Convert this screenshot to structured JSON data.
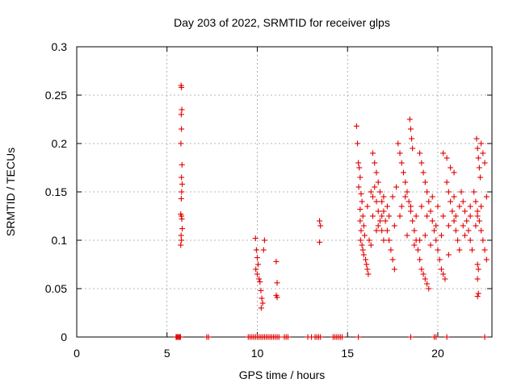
{
  "chart_data": {
    "type": "scatter",
    "title": "Day 203 of 2022, SRMTID for receiver glps",
    "xlabel": "GPS time / hours",
    "ylabel": "SRMTID / TECUs",
    "xlim": [
      0,
      23
    ],
    "ylim": [
      0,
      0.3
    ],
    "xticks": [
      0,
      5,
      10,
      15,
      20
    ],
    "yticks": [
      0,
      0.05,
      0.1,
      0.15,
      0.2,
      0.25,
      0.3
    ],
    "xtick_labels": [
      "0",
      "5",
      "10",
      "15",
      "20"
    ],
    "ytick_labels": [
      "0",
      "0.05",
      "0.1",
      "0.15",
      "0.2",
      "0.25",
      "0.3"
    ],
    "grid": true,
    "legend": "none",
    "marker": "plus",
    "colors": {
      "series": "#e00000",
      "grid": "#a0a0a0",
      "axis": "#000000"
    },
    "series": [
      {
        "points": [
          [
            5.5,
            0
          ],
          [
            5.55,
            0
          ],
          [
            5.6,
            0
          ],
          [
            5.65,
            0
          ],
          [
            5.7,
            0
          ],
          [
            5.75,
            0
          ],
          [
            7.2,
            0
          ],
          [
            7.3,
            0
          ],
          [
            9.5,
            0
          ],
          [
            9.6,
            0
          ],
          [
            9.7,
            0
          ],
          [
            9.8,
            0
          ],
          [
            9.9,
            0
          ],
          [
            10.0,
            0
          ],
          [
            10.1,
            0
          ],
          [
            10.2,
            0
          ],
          [
            10.3,
            0
          ],
          [
            10.4,
            0
          ],
          [
            10.5,
            0
          ],
          [
            10.6,
            0
          ],
          [
            10.7,
            0
          ],
          [
            10.8,
            0
          ],
          [
            10.9,
            0
          ],
          [
            11.0,
            0
          ],
          [
            11.1,
            0
          ],
          [
            11.2,
            0
          ],
          [
            11.5,
            0
          ],
          [
            11.6,
            0
          ],
          [
            11.7,
            0
          ],
          [
            12.8,
            0
          ],
          [
            13.0,
            0
          ],
          [
            13.2,
            0
          ],
          [
            13.3,
            0
          ],
          [
            13.4,
            0
          ],
          [
            13.5,
            0
          ],
          [
            14.2,
            0
          ],
          [
            14.3,
            0
          ],
          [
            14.4,
            0
          ],
          [
            14.5,
            0
          ],
          [
            14.6,
            0
          ],
          [
            14.7,
            0
          ],
          [
            15.6,
            0
          ],
          [
            18.5,
            0
          ],
          [
            19.8,
            0
          ],
          [
            19.9,
            0
          ],
          [
            20.5,
            0
          ],
          [
            22.6,
            0
          ],
          [
            5.78,
            0.26
          ],
          [
            5.8,
            0.258
          ],
          [
            5.82,
            0.235
          ],
          [
            5.79,
            0.23
          ],
          [
            5.8,
            0.215
          ],
          [
            5.77,
            0.2
          ],
          [
            5.83,
            0.178
          ],
          [
            5.8,
            0.165
          ],
          [
            5.84,
            0.158
          ],
          [
            5.81,
            0.15
          ],
          [
            5.79,
            0.143
          ],
          [
            5.76,
            0.127
          ],
          [
            5.8,
            0.125
          ],
          [
            5.82,
            0.122
          ],
          [
            5.84,
            0.112
          ],
          [
            5.78,
            0.105
          ],
          [
            5.8,
            0.1
          ],
          [
            5.76,
            0.095
          ],
          [
            9.9,
            0.102
          ],
          [
            9.95,
            0.09
          ],
          [
            10.0,
            0.082
          ],
          [
            10.05,
            0.075
          ],
          [
            9.92,
            0.07
          ],
          [
            10.0,
            0.065
          ],
          [
            10.1,
            0.06
          ],
          [
            10.15,
            0.057
          ],
          [
            10.2,
            0.048
          ],
          [
            10.25,
            0.04
          ],
          [
            10.3,
            0.035
          ],
          [
            10.22,
            0.03
          ],
          [
            10.4,
            0.1
          ],
          [
            10.35,
            0.09
          ],
          [
            11.05,
            0.078
          ],
          [
            11.1,
            0.056
          ],
          [
            11.05,
            0.043
          ],
          [
            11.1,
            0.041
          ],
          [
            13.45,
            0.12
          ],
          [
            13.5,
            0.115
          ],
          [
            13.45,
            0.098
          ],
          [
            15.5,
            0.218
          ],
          [
            15.55,
            0.2
          ],
          [
            15.6,
            0.18
          ],
          [
            15.65,
            0.175
          ],
          [
            15.7,
            0.165
          ],
          [
            15.62,
            0.155
          ],
          [
            15.75,
            0.148
          ],
          [
            15.8,
            0.14
          ],
          [
            15.7,
            0.132
          ],
          [
            15.85,
            0.125
          ],
          [
            15.7,
            0.12
          ],
          [
            15.9,
            0.115
          ],
          [
            15.75,
            0.11
          ],
          [
            15.95,
            0.105
          ],
          [
            15.72,
            0.1
          ],
          [
            15.8,
            0.095
          ],
          [
            15.85,
            0.09
          ],
          [
            15.9,
            0.085
          ],
          [
            16.0,
            0.08
          ],
          [
            16.05,
            0.075
          ],
          [
            16.1,
            0.07
          ],
          [
            16.15,
            0.065
          ],
          [
            16.3,
            0.15
          ],
          [
            16.4,
            0.145
          ],
          [
            16.5,
            0.155
          ],
          [
            16.6,
            0.14
          ],
          [
            16.7,
            0.13
          ],
          [
            16.8,
            0.12
          ],
          [
            16.9,
            0.11
          ],
          [
            17.0,
            0.1
          ],
          [
            16.4,
            0.19
          ],
          [
            16.5,
            0.18
          ],
          [
            16.6,
            0.17
          ],
          [
            16.7,
            0.16
          ],
          [
            16.8,
            0.15
          ],
          [
            16.9,
            0.14
          ],
          [
            17.0,
            0.13
          ],
          [
            17.1,
            0.12
          ],
          [
            17.2,
            0.11
          ],
          [
            17.3,
            0.1
          ],
          [
            17.4,
            0.09
          ],
          [
            17.5,
            0.08
          ],
          [
            17.6,
            0.07
          ],
          [
            17.8,
            0.2
          ],
          [
            17.9,
            0.19
          ],
          [
            18.0,
            0.18
          ],
          [
            18.1,
            0.17
          ],
          [
            18.2,
            0.16
          ],
          [
            18.3,
            0.15
          ],
          [
            18.4,
            0.14
          ],
          [
            18.5,
            0.13
          ],
          [
            18.6,
            0.12
          ],
          [
            18.7,
            0.11
          ],
          [
            18.8,
            0.1
          ],
          [
            18.45,
            0.225
          ],
          [
            18.5,
            0.215
          ],
          [
            18.55,
            0.205
          ],
          [
            18.6,
            0.195
          ],
          [
            18.9,
            0.09
          ],
          [
            19.0,
            0.08
          ],
          [
            19.1,
            0.07
          ],
          [
            19.2,
            0.065
          ],
          [
            19.3,
            0.06
          ],
          [
            19.4,
            0.055
          ],
          [
            19.5,
            0.05
          ],
          [
            19.0,
            0.19
          ],
          [
            19.1,
            0.18
          ],
          [
            19.2,
            0.17
          ],
          [
            19.3,
            0.16
          ],
          [
            19.4,
            0.15
          ],
          [
            19.5,
            0.14
          ],
          [
            19.6,
            0.13
          ],
          [
            19.7,
            0.12
          ],
          [
            19.8,
            0.11
          ],
          [
            19.9,
            0.1
          ],
          [
            20.0,
            0.09
          ],
          [
            20.1,
            0.08
          ],
          [
            20.2,
            0.07
          ],
          [
            20.3,
            0.065
          ],
          [
            20.4,
            0.06
          ],
          [
            20.5,
            0.16
          ],
          [
            20.6,
            0.15
          ],
          [
            20.7,
            0.14
          ],
          [
            20.8,
            0.13
          ],
          [
            20.9,
            0.12
          ],
          [
            21.0,
            0.11
          ],
          [
            21.1,
            0.1
          ],
          [
            21.2,
            0.09
          ],
          [
            20.3,
            0.19
          ],
          [
            20.5,
            0.185
          ],
          [
            20.7,
            0.175
          ],
          [
            20.9,
            0.17
          ],
          [
            21.3,
            0.15
          ],
          [
            21.4,
            0.14
          ],
          [
            21.5,
            0.13
          ],
          [
            21.6,
            0.12
          ],
          [
            21.7,
            0.11
          ],
          [
            21.8,
            0.1
          ],
          [
            21.9,
            0.09
          ],
          [
            22.0,
            0.15
          ],
          [
            22.1,
            0.14
          ],
          [
            22.2,
            0.13
          ],
          [
            22.3,
            0.12
          ],
          [
            22.4,
            0.11
          ],
          [
            22.5,
            0.1
          ],
          [
            22.6,
            0.09
          ],
          [
            22.7,
            0.08
          ],
          [
            22.15,
            0.205
          ],
          [
            22.2,
            0.195
          ],
          [
            22.25,
            0.185
          ],
          [
            22.3,
            0.175
          ],
          [
            22.35,
            0.165
          ],
          [
            22.4,
            0.2
          ],
          [
            22.5,
            0.19
          ],
          [
            22.6,
            0.18
          ],
          [
            22.2,
            0.075
          ],
          [
            22.25,
            0.07
          ],
          [
            22.2,
            0.06
          ],
          [
            22.25,
            0.045
          ],
          [
            22.2,
            0.042
          ],
          [
            16.2,
            0.1
          ],
          [
            16.3,
            0.095
          ],
          [
            16.6,
            0.11
          ],
          [
            16.9,
            0.125
          ],
          [
            17.2,
            0.135
          ],
          [
            17.5,
            0.145
          ],
          [
            17.7,
            0.155
          ],
          [
            18.0,
            0.135
          ],
          [
            18.3,
            0.105
          ],
          [
            18.7,
            0.095
          ],
          [
            19.0,
            0.1
          ],
          [
            19.3,
            0.105
          ],
          [
            19.6,
            0.095
          ],
          [
            19.9,
            0.115
          ],
          [
            20.2,
            0.105
          ],
          [
            20.6,
            0.085
          ],
          [
            21.0,
            0.125
          ],
          [
            21.4,
            0.115
          ],
          [
            21.8,
            0.135
          ],
          [
            22.2,
            0.125
          ],
          [
            16.1,
            0.135
          ],
          [
            16.4,
            0.125
          ],
          [
            16.7,
            0.115
          ],
          [
            17.0,
            0.145
          ],
          [
            17.3,
            0.125
          ],
          [
            17.6,
            0.115
          ],
          [
            17.9,
            0.125
          ],
          [
            18.2,
            0.145
          ],
          [
            18.5,
            0.135
          ],
          [
            18.8,
            0.125
          ],
          [
            19.1,
            0.135
          ],
          [
            19.4,
            0.125
          ],
          [
            19.7,
            0.145
          ],
          [
            20.0,
            0.135
          ],
          [
            20.3,
            0.125
          ],
          [
            20.6,
            0.115
          ],
          [
            20.9,
            0.145
          ],
          [
            21.2,
            0.135
          ],
          [
            21.5,
            0.105
          ],
          [
            21.8,
            0.125
          ],
          [
            22.1,
            0.115
          ],
          [
            22.4,
            0.135
          ],
          [
            22.7,
            0.145
          ]
        ]
      }
    ]
  }
}
